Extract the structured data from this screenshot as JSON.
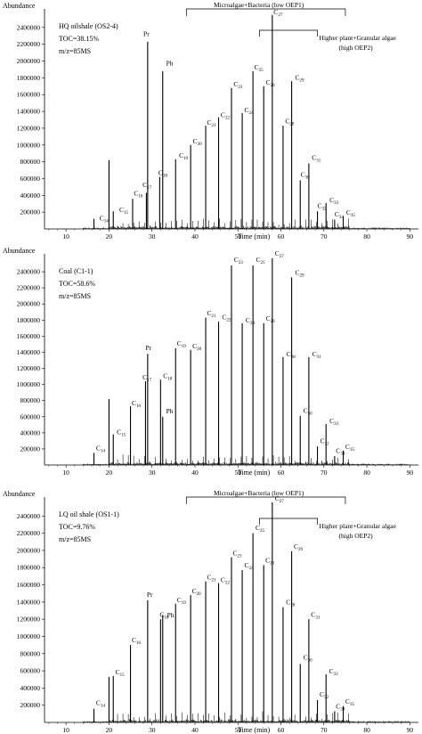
{
  "chart_data": [
    {
      "type": "line",
      "ylabel": "Abundance",
      "xlabel": "Time (min)",
      "xlim": [
        5,
        92
      ],
      "ylim": [
        0,
        2600000
      ],
      "x_ticks": [
        10,
        20,
        30,
        40,
        50,
        60,
        70,
        80,
        90
      ],
      "y_ticks": [
        200000,
        400000,
        600000,
        800000,
        1000000,
        1200000,
        1400000,
        1600000,
        1800000,
        2000000,
        2200000,
        2400000
      ],
      "info": [
        "HQ oilshale (OS2-4)",
        "TOC=38.15%",
        "m/z=85MS"
      ],
      "brackets": [
        {
          "label": "Microalgae+Bacteria (low OEP1)",
          "from": 38,
          "to": 75
        },
        {
          "label_lines": [
            "Higher plant+Granular algae",
            "(high OEP2)"
          ],
          "from": 55,
          "to": 68.5
        }
      ],
      "peaks": [
        {
          "x": 16.5,
          "y": 120000,
          "label": "C",
          "sub": "14",
          "lx": 17.8,
          "ly": 100000
        },
        {
          "x": 20.0,
          "y": 820000
        },
        {
          "x": 21.0,
          "y": 210000,
          "label": "C",
          "sub": "15",
          "lx": 22.4,
          "ly": 200000
        },
        {
          "x": 25.5,
          "y": 360000,
          "label": "C",
          "sub": "16",
          "lx": 25.8,
          "ly": 400000
        },
        {
          "x": 28.7,
          "y": 430000,
          "label": "C",
          "sub": "17",
          "lx": 27.8,
          "ly": 500000
        },
        {
          "x": 29.0,
          "y": 2230000,
          "label": "Pr",
          "lx": 28.0,
          "ly": 2300000
        },
        {
          "x": 32.5,
          "y": 1880000,
          "label": "Ph",
          "lx": 33.3,
          "ly": 1950000
        },
        {
          "x": 31.8,
          "y": 620000,
          "label": "C",
          "sub": "18",
          "lx": 31.5,
          "ly": 640000
        },
        {
          "x": 35.5,
          "y": 830000,
          "label": "C",
          "sub": "19",
          "lx": 36.3,
          "ly": 850000
        },
        {
          "x": 39.0,
          "y": 1000000,
          "label": "C",
          "sub": "20",
          "lx": 39.5,
          "ly": 1020000
        },
        {
          "x": 42.5,
          "y": 1230000,
          "label": "C",
          "sub": "21",
          "lx": 42.8,
          "ly": 1240000
        },
        {
          "x": 45.5,
          "y": 1330000,
          "label": "C",
          "sub": "22",
          "lx": 46.0,
          "ly": 1330000
        },
        {
          "x": 48.5,
          "y": 1680000,
          "label": "C",
          "sub": "23",
          "lx": 49.0,
          "ly": 1700000
        },
        {
          "x": 51.0,
          "y": 1380000,
          "label": "C",
          "sub": "24",
          "lx": 51.5,
          "ly": 1390000
        },
        {
          "x": 53.5,
          "y": 1880000,
          "label": "C",
          "sub": "25",
          "lx": 53.8,
          "ly": 1900000
        },
        {
          "x": 56.0,
          "y": 1700000,
          "label": "C",
          "sub": "26",
          "lx": 56.5,
          "ly": 1720000
        },
        {
          "x": 58.0,
          "y": 2550000,
          "label": "C",
          "sub": "27",
          "lx": 58.3,
          "ly": 2560000
        },
        {
          "x": 60.5,
          "y": 1230000,
          "label": "C",
          "sub": "28",
          "lx": 61.0,
          "ly": 1260000
        },
        {
          "x": 62.5,
          "y": 1760000,
          "label": "C",
          "sub": "29",
          "lx": 63.3,
          "ly": 1780000
        },
        {
          "x": 64.5,
          "y": 580000,
          "label": "C",
          "sub": "30",
          "lx": 64.6,
          "ly": 620000
        },
        {
          "x": 66.5,
          "y": 780000,
          "label": "C",
          "sub": "31",
          "lx": 67.2,
          "ly": 820000
        },
        {
          "x": 68.5,
          "y": 210000,
          "label": "C",
          "sub": "32",
          "lx": 68.5,
          "ly": 250000
        },
        {
          "x": 70.5,
          "y": 310000,
          "label": "C",
          "sub": "33",
          "lx": 71.3,
          "ly": 320000
        },
        {
          "x": 72.5,
          "y": 110000,
          "label": "C",
          "sub": "34",
          "lx": 72.5,
          "ly": 150000
        },
        {
          "x": 74.5,
          "y": 150000,
          "label": "C",
          "sub": "35",
          "lx": 75.2,
          "ly": 170000
        }
      ]
    },
    {
      "type": "line",
      "ylabel": "Abundance",
      "xlabel": "Time (min)",
      "xlim": [
        5,
        92
      ],
      "ylim": [
        0,
        2600000
      ],
      "x_ticks": [
        10,
        20,
        30,
        40,
        50,
        60,
        70,
        80,
        90
      ],
      "y_ticks": [
        200000,
        400000,
        600000,
        800000,
        1000000,
        1200000,
        1400000,
        1600000,
        1800000,
        2000000,
        2200000,
        2400000
      ],
      "info": [
        "Coal (C1-1)",
        "TOC=58.6%",
        "m/z=85MS"
      ],
      "brackets": [],
      "peaks": [
        {
          "x": 16.5,
          "y": 150000,
          "label": "C",
          "sub": "14",
          "lx": 17.0,
          "ly": 180000
        },
        {
          "x": 20.0,
          "y": 820000
        },
        {
          "x": 21.0,
          "y": 380000,
          "label": "C",
          "sub": "15",
          "lx": 21.8,
          "ly": 380000
        },
        {
          "x": 25.0,
          "y": 730000,
          "label": "C",
          "sub": "16",
          "lx": 25.3,
          "ly": 740000
        },
        {
          "x": 29.0,
          "y": 1380000,
          "label": "Pr",
          "lx": 28.5,
          "ly": 1430000
        },
        {
          "x": 28.5,
          "y": 1040000,
          "label": "C",
          "sub": "17",
          "lx": 27.8,
          "ly": 1060000
        },
        {
          "x": 32.0,
          "y": 1060000,
          "label": "C",
          "sub": "18",
          "lx": 32.6,
          "ly": 1080000
        },
        {
          "x": 32.5,
          "y": 600000,
          "label": "Ph",
          "lx": 33.3,
          "ly": 640000
        },
        {
          "x": 35.5,
          "y": 1450000,
          "label": "C",
          "sub": "19",
          "lx": 35.8,
          "ly": 1480000
        },
        {
          "x": 39.0,
          "y": 1430000,
          "label": "C",
          "sub": "20",
          "lx": 39.4,
          "ly": 1450000
        },
        {
          "x": 42.5,
          "y": 1830000,
          "label": "C",
          "sub": "21",
          "lx": 42.8,
          "ly": 1860000
        },
        {
          "x": 45.5,
          "y": 1780000,
          "label": "C",
          "sub": "22",
          "lx": 46.3,
          "ly": 1810000
        },
        {
          "x": 48.5,
          "y": 2480000,
          "label": "C",
          "sub": "23",
          "lx": 49.1,
          "ly": 2520000
        },
        {
          "x": 51.0,
          "y": 1760000,
          "label": "C",
          "sub": "24",
          "lx": 51.8,
          "ly": 1770000
        },
        {
          "x": 53.5,
          "y": 2480000,
          "label": "C",
          "sub": "25",
          "lx": 54.2,
          "ly": 2520000
        },
        {
          "x": 56.0,
          "y": 1760000,
          "label": "C",
          "sub": "26",
          "lx": 56.5,
          "ly": 1790000
        },
        {
          "x": 58.0,
          "y": 2570000,
          "label": "C",
          "sub": "27",
          "lx": 58.6,
          "ly": 2600000
        },
        {
          "x": 60.5,
          "y": 1340000,
          "label": "C",
          "sub": "28",
          "lx": 61.3,
          "ly": 1350000
        },
        {
          "x": 62.5,
          "y": 2330000,
          "label": "C",
          "sub": "29",
          "lx": 63.3,
          "ly": 2360000
        },
        {
          "x": 64.5,
          "y": 610000,
          "label": "C",
          "sub": "30",
          "lx": 65.2,
          "ly": 650000
        },
        {
          "x": 66.5,
          "y": 1340000,
          "label": "C",
          "sub": "31",
          "lx": 67.3,
          "ly": 1350000
        },
        {
          "x": 68.5,
          "y": 230000,
          "label": "C",
          "sub": "32",
          "lx": 69.1,
          "ly": 270000
        },
        {
          "x": 70.5,
          "y": 510000,
          "label": "C",
          "sub": "33",
          "lx": 71.3,
          "ly": 520000
        },
        {
          "x": 72.5,
          "y": 110000,
          "label": "C",
          "sub": "34",
          "lx": 72.8,
          "ly": 150000
        },
        {
          "x": 74.5,
          "y": 180000,
          "label": "C",
          "sub": "35",
          "lx": 75.0,
          "ly": 200000
        }
      ]
    },
    {
      "type": "line",
      "ylabel": "Abundance",
      "xlabel": "Time (min)",
      "xlim": [
        5,
        92
      ],
      "ylim": [
        0,
        2600000
      ],
      "x_ticks": [
        10,
        20,
        30,
        40,
        50,
        60,
        70,
        80,
        90
      ],
      "y_ticks": [
        200000,
        400000,
        600000,
        800000,
        1000000,
        1200000,
        1400000,
        1600000,
        1800000,
        2000000,
        2200000,
        2400000
      ],
      "info": [
        "LQ oil shale (OS1-1)",
        "TOC=9.76%",
        "m/z=85MS"
      ],
      "brackets": [
        {
          "label": "Microalgae+Bacteria (low OEP1)",
          "from": 38,
          "to": 75
        },
        {
          "label_lines": [
            "Higher plant+Granular algae",
            "(high OEP2)"
          ],
          "from": 55,
          "to": 68.5
        }
      ],
      "peaks": [
        {
          "x": 16.5,
          "y": 160000,
          "label": "C",
          "sub": "14",
          "lx": 17.0,
          "ly": 200000
        },
        {
          "x": 20.0,
          "y": 530000
        },
        {
          "x": 21.0,
          "y": 540000,
          "label": "C",
          "sub": "15",
          "lx": 21.5,
          "ly": 560000
        },
        {
          "x": 25.0,
          "y": 900000,
          "label": "C",
          "sub": "16",
          "lx": 25.3,
          "ly": 930000
        },
        {
          "x": 29.0,
          "y": 1420000,
          "label": "Pr",
          "lx": 28.8,
          "ly": 1460000
        },
        {
          "x": 32.0,
          "y": 1200000,
          "label": "C",
          "sub": "18",
          "lx": 31.8,
          "ly": 1230000
        },
        {
          "x": 32.5,
          "y": 1250000,
          "label": "Ph",
          "lx": 33.5,
          "ly": 1220000
        },
        {
          "x": 35.5,
          "y": 1380000,
          "label": "C",
          "sub": "19",
          "lx": 35.8,
          "ly": 1400000
        },
        {
          "x": 39.0,
          "y": 1480000,
          "label": "C",
          "sub": "20",
          "lx": 39.3,
          "ly": 1500000
        },
        {
          "x": 42.5,
          "y": 1640000,
          "label": "C",
          "sub": "21",
          "lx": 42.8,
          "ly": 1660000
        },
        {
          "x": 45.5,
          "y": 1620000,
          "label": "C",
          "sub": "22",
          "lx": 46.0,
          "ly": 1630000
        },
        {
          "x": 48.5,
          "y": 1920000,
          "label": "C",
          "sub": "23",
          "lx": 48.8,
          "ly": 1940000
        },
        {
          "x": 51.0,
          "y": 1770000,
          "label": "C",
          "sub": "24",
          "lx": 51.5,
          "ly": 1800000
        },
        {
          "x": 53.5,
          "y": 2200000,
          "label": "C",
          "sub": "25",
          "lx": 54.1,
          "ly": 2240000
        },
        {
          "x": 56.0,
          "y": 1830000,
          "label": "C",
          "sub": "26",
          "lx": 56.4,
          "ly": 1860000
        },
        {
          "x": 58.0,
          "y": 2560000,
          "label": "C",
          "sub": "27",
          "lx": 58.6,
          "ly": 2580000
        },
        {
          "x": 60.5,
          "y": 1340000,
          "label": "C",
          "sub": "28",
          "lx": 61.2,
          "ly": 1370000
        },
        {
          "x": 62.5,
          "y": 1990000,
          "label": "C",
          "sub": "29",
          "lx": 63.0,
          "ly": 2020000
        },
        {
          "x": 64.5,
          "y": 680000,
          "label": "C",
          "sub": "30",
          "lx": 65.2,
          "ly": 730000
        },
        {
          "x": 66.5,
          "y": 1200000,
          "label": "C",
          "sub": "31",
          "lx": 67.0,
          "ly": 1230000
        },
        {
          "x": 68.5,
          "y": 260000,
          "label": "C",
          "sub": "32",
          "lx": 69.0,
          "ly": 300000
        },
        {
          "x": 70.5,
          "y": 560000,
          "label": "C",
          "sub": "33",
          "lx": 71.2,
          "ly": 570000
        },
        {
          "x": 72.5,
          "y": 130000,
          "label": "C",
          "sub": "34",
          "lx": 72.8,
          "ly": 160000
        },
        {
          "x": 74.5,
          "y": 190000,
          "label": "C",
          "sub": "35",
          "lx": 75.0,
          "ly": 220000
        }
      ]
    }
  ]
}
